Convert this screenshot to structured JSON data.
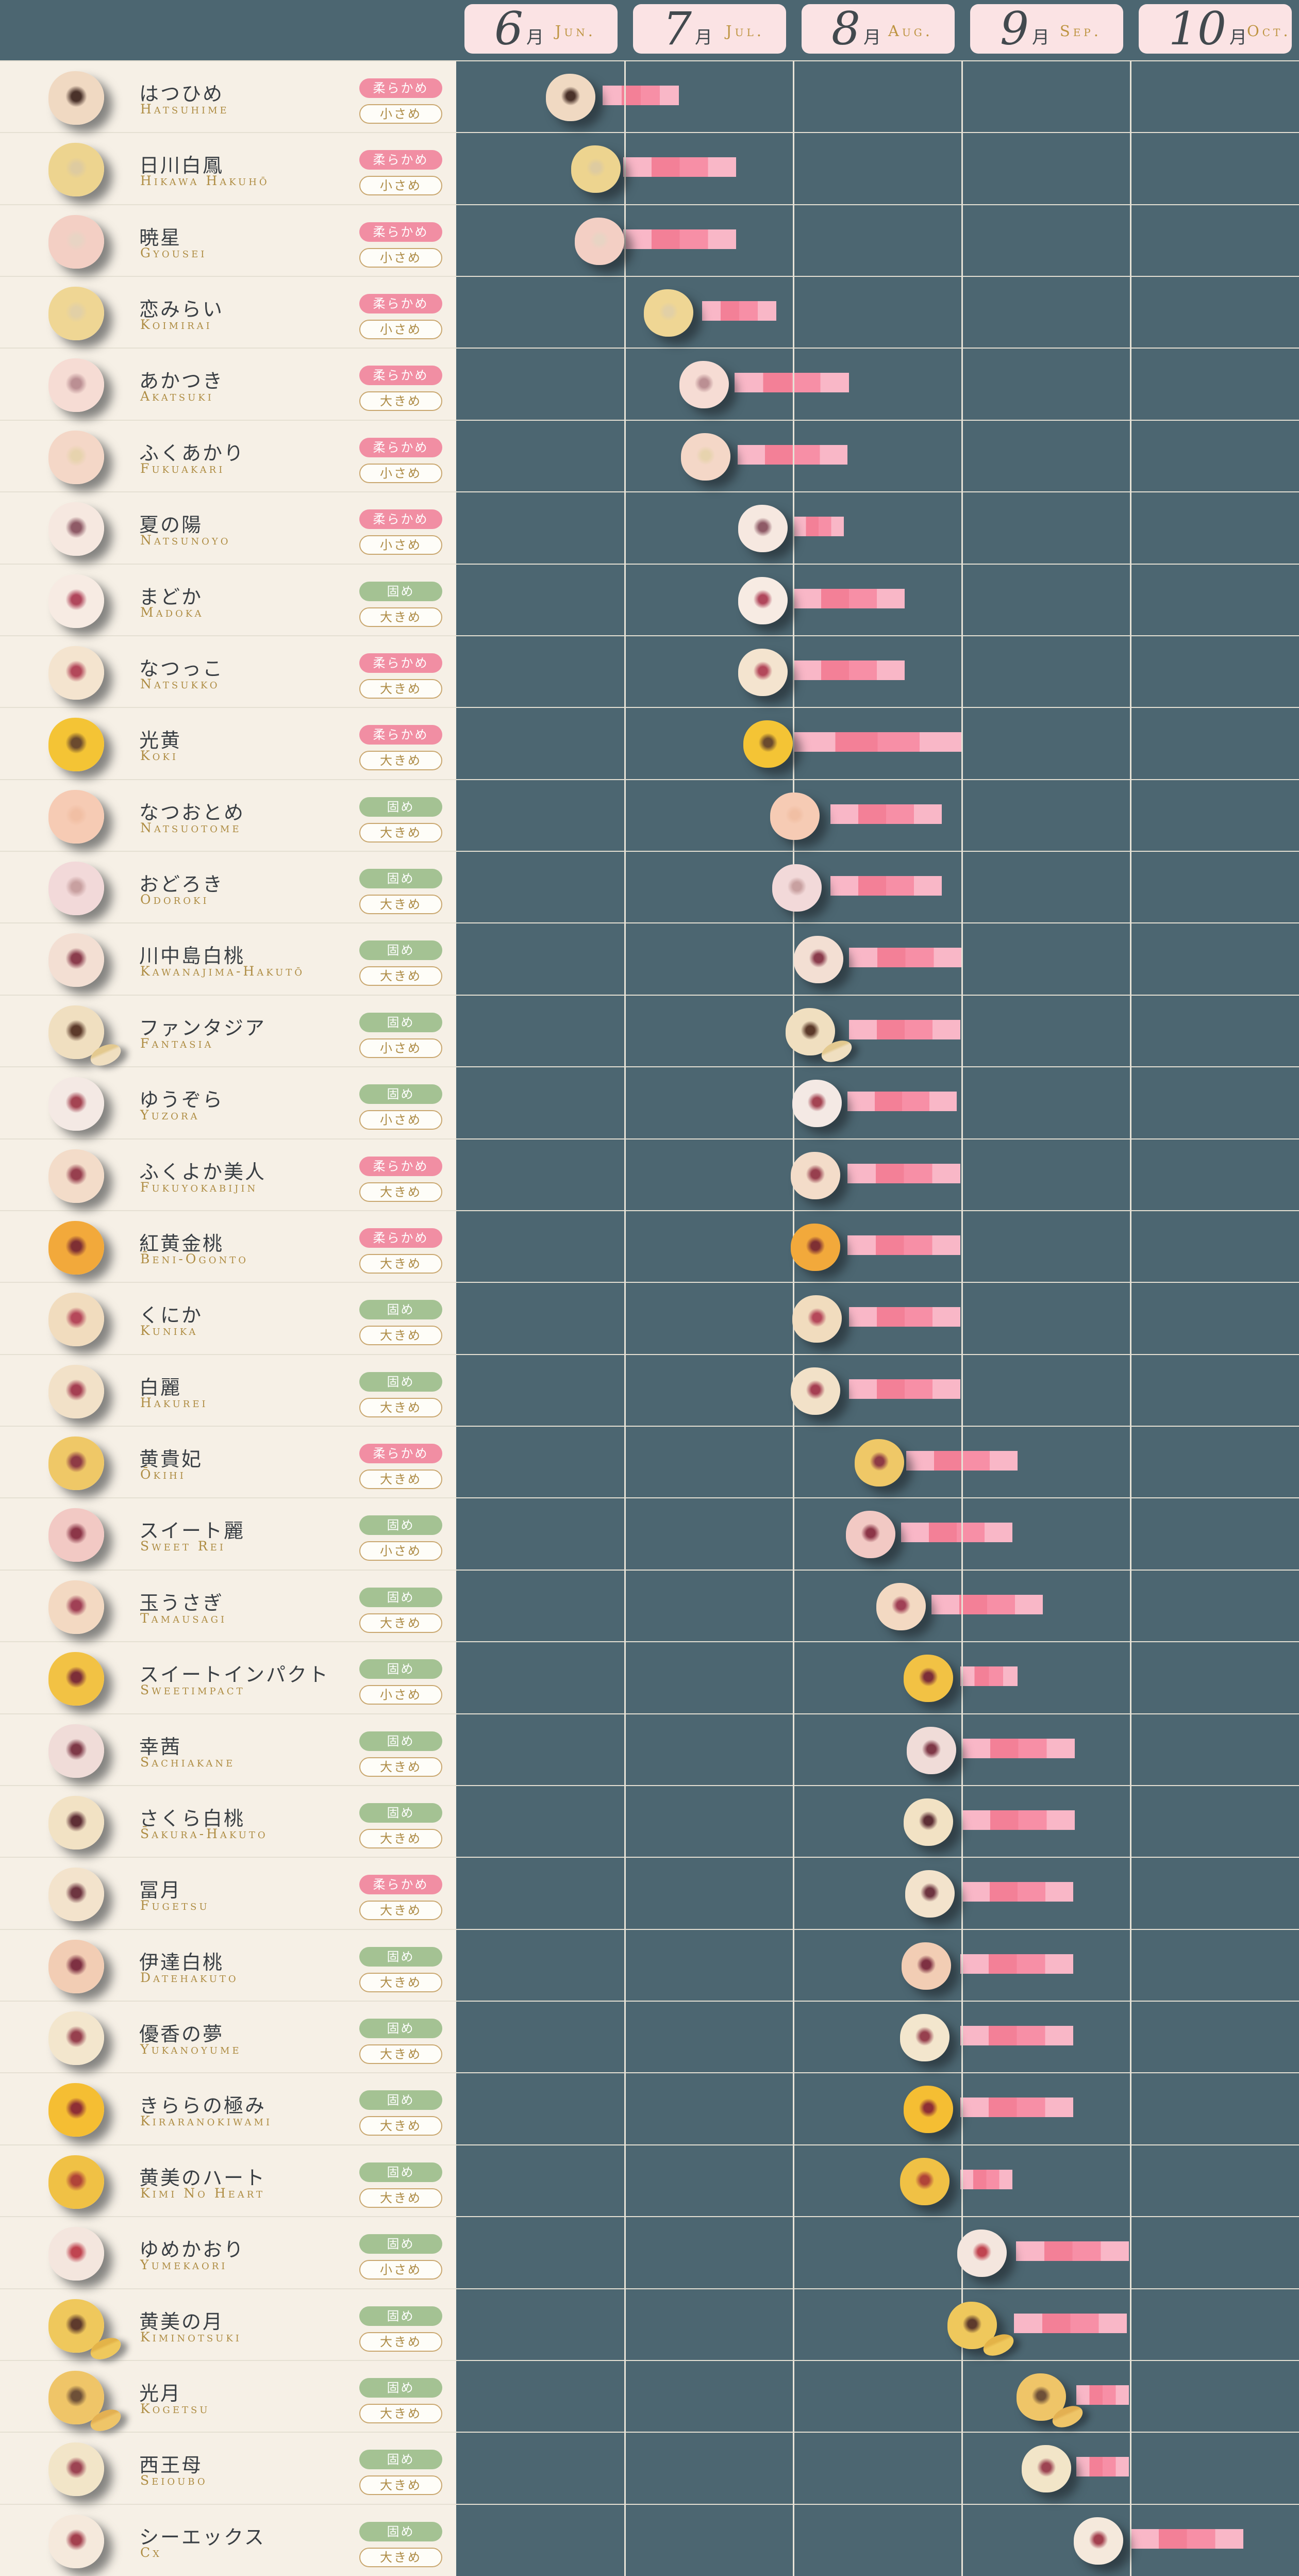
{
  "colors": {
    "background_teal": "#4C6671",
    "panel_cream": "#F6F0E6",
    "grid_line": "#E5E0D3",
    "month_box_pink": "#FBE3E4",
    "month_number": "#42494E",
    "month_en_gold": "#BE9441",
    "name_text": "#3A3F44",
    "romaji_gold": "#AE8C42",
    "badge_soft_pink": "#F18EA3",
    "badge_firm_green": "#A4C293",
    "badge_outline_bg": "#FEFDF8",
    "badge_outline_border": "#C9A76F",
    "badge_outline_text": "#AD8B45",
    "bar_light": "#F9B7C7",
    "bar_dark": "#F38097",
    "bar_mid": "#F78FA6"
  },
  "chart_data": {
    "type": "timeline",
    "title": "",
    "x_axis": {
      "unit": "month",
      "range": [
        6,
        11
      ],
      "tick_labels": [
        "6月 Jun.",
        "7月 Jul.",
        "8月 Aug.",
        "9月 Sep.",
        "10月 Oct."
      ]
    },
    "legend": {
      "texture_soft": "柔らかめ",
      "texture_firm": "固め",
      "size_small": "小さめ",
      "size_large": "大きめ"
    },
    "months": [
      {
        "num": "6",
        "kanji": "月",
        "en": "Jun."
      },
      {
        "num": "7",
        "kanji": "月",
        "en": "Jul."
      },
      {
        "num": "8",
        "kanji": "月",
        "en": "Aug."
      },
      {
        "num": "9",
        "kanji": "月",
        "en": "Sep."
      },
      {
        "num": "10",
        "kanji": "月",
        "en": "Oct."
      }
    ],
    "varieties": [
      {
        "name_ja": "はつひめ",
        "name_en": "Hatsuhime",
        "texture": "柔らかめ",
        "firm": false,
        "size": "小さめ",
        "start": 6.87,
        "end": 7.32,
        "peach_pos": 6.68,
        "flesh": "#F0D9C2",
        "skin": "#DF8A80",
        "pit": "#4A322A",
        "wedge": false
      },
      {
        "name_ja": "日川白鳳",
        "name_en": "Hikawa Hakuhō",
        "texture": "柔らかめ",
        "firm": false,
        "size": "小さめ",
        "start": 6.99,
        "end": 7.66,
        "peach_pos": 6.83,
        "flesh": "#EDD48F",
        "skin": "#D8BA62",
        "pit": "#DECBA0",
        "wedge": false
      },
      {
        "name_ja": "暁星",
        "name_en": "Gyousei",
        "texture": "柔らかめ",
        "firm": false,
        "size": "小さめ",
        "start": 6.99,
        "end": 7.66,
        "peach_pos": 6.85,
        "flesh": "#F3CFC4",
        "skin": "#E08A8F",
        "pit": "#E8D4C4",
        "wedge": false
      },
      {
        "name_ja": "恋みらい",
        "name_en": "Koimirai",
        "texture": "柔らかめ",
        "firm": false,
        "size": "小さめ",
        "start": 7.46,
        "end": 7.9,
        "peach_pos": 7.26,
        "flesh": "#EFD694",
        "skin": "#DBBE66",
        "pit": "#E2D0A6",
        "wedge": false
      },
      {
        "name_ja": "あかつき",
        "name_en": "Akatsuki",
        "texture": "柔らかめ",
        "firm": false,
        "size": "大きめ",
        "start": 7.65,
        "end": 8.33,
        "peach_pos": 7.47,
        "flesh": "#F6DCD4",
        "skin": "#EFB4B4",
        "pit": "#BB8F93",
        "wedge": false
      },
      {
        "name_ja": "ふくあかり",
        "name_en": "Fukuakari",
        "texture": "柔らかめ",
        "firm": false,
        "size": "小さめ",
        "start": 7.67,
        "end": 8.32,
        "peach_pos": 7.48,
        "flesh": "#F4D7C7",
        "skin": "#E79A9A",
        "pit": "#E7D3AE",
        "wedge": false
      },
      {
        "name_ja": "夏の陽",
        "name_en": "Natsunoyo",
        "texture": "柔らかめ",
        "firm": false,
        "size": "小さめ",
        "start": 8.0,
        "end": 8.3,
        "peach_pos": 7.82,
        "flesh": "#F6E8E0",
        "skin": "#EFC9C6",
        "pit": "#8E5A66",
        "wedge": false
      },
      {
        "name_ja": "まどか",
        "name_en": "Madoka",
        "texture": "固め",
        "firm": true,
        "size": "大きめ",
        "start": 8.0,
        "end": 8.66,
        "peach_pos": 7.82,
        "flesh": "#F7EBE3",
        "skin": "#F0CFC9",
        "pit": "#B0475C",
        "wedge": false
      },
      {
        "name_ja": "なつっこ",
        "name_en": "Natsukko",
        "texture": "柔らかめ",
        "firm": false,
        "size": "大きめ",
        "start": 8.0,
        "end": 8.66,
        "peach_pos": 7.82,
        "flesh": "#F4E4CF",
        "skin": "#EBB3A8",
        "pit": "#B3485A",
        "wedge": false
      },
      {
        "name_ja": "光黄",
        "name_en": "Koki",
        "texture": "柔らかめ",
        "firm": false,
        "size": "大きめ",
        "start": 8.0,
        "end": 9.0,
        "peach_pos": 7.85,
        "flesh": "#F4C435",
        "skin": "#E9A93C",
        "pit": "#6B4A2E",
        "wedge": false
      },
      {
        "name_ja": "なつおとめ",
        "name_en": "Natsuotome",
        "texture": "固め",
        "firm": true,
        "size": "大きめ",
        "start": 8.22,
        "end": 8.88,
        "peach_pos": 8.01,
        "flesh": "#F6CBB4",
        "skin": "#F0A794",
        "pit": "#F1BFA4",
        "wedge": false
      },
      {
        "name_ja": "おどろき",
        "name_en": "Odoroki",
        "texture": "固め",
        "firm": true,
        "size": "大きめ",
        "start": 8.22,
        "end": 8.88,
        "peach_pos": 8.02,
        "flesh": "#F2D9D9",
        "skin": "#E9AFAF",
        "pit": "#C8A0A0",
        "wedge": false
      },
      {
        "name_ja": "川中島白桃",
        "name_en": "Kawanajima-Hakutō",
        "texture": "固め",
        "firm": true,
        "size": "大きめ",
        "start": 8.33,
        "end": 9.0,
        "peach_pos": 8.15,
        "flesh": "#F3DFD3",
        "skin": "#EBB5AC",
        "pit": "#8A3C4C",
        "wedge": false
      },
      {
        "name_ja": "ファンタジア",
        "name_en": "Fantasia",
        "texture": "固め",
        "firm": true,
        "size": "小さめ",
        "start": 8.33,
        "end": 8.99,
        "peach_pos": 8.1,
        "flesh": "#F0DFC0",
        "skin": "#E3C98F",
        "pit": "#5C3A2A",
        "wedge": true
      },
      {
        "name_ja": "ゆうぞら",
        "name_en": "Yuzora",
        "texture": "固め",
        "firm": true,
        "size": "小さめ",
        "start": 8.32,
        "end": 8.97,
        "peach_pos": 8.14,
        "flesh": "#F4E9E4",
        "skin": "#ECCBC4",
        "pit": "#A44452",
        "wedge": false
      },
      {
        "name_ja": "ふくよか美人",
        "name_en": "Fukuyokabijin",
        "texture": "柔らかめ",
        "firm": false,
        "size": "大きめ",
        "start": 8.32,
        "end": 8.99,
        "peach_pos": 8.13,
        "flesh": "#F3DCC9",
        "skin": "#ECB4A4",
        "pit": "#973F4E",
        "wedge": false
      },
      {
        "name_ja": "紅黄金桃",
        "name_en": "B̄eni-Ogonto",
        "texture": "柔らかめ",
        "firm": false,
        "size": "大きめ",
        "start": 8.32,
        "end": 8.99,
        "peach_pos": 8.13,
        "flesh": "#F2A93B",
        "skin": "#E08A33",
        "pit": "#7E2F33",
        "wedge": false
      },
      {
        "name_ja": "くにか",
        "name_en": "Kunika",
        "texture": "固め",
        "firm": true,
        "size": "大きめ",
        "start": 8.33,
        "end": 8.99,
        "peach_pos": 8.14,
        "flesh": "#F1DCBE",
        "skin": "#E7BC9E",
        "pit": "#B5485A",
        "wedge": false
      },
      {
        "name_ja": "白麗",
        "name_en": "Hakurei",
        "texture": "固め",
        "firm": true,
        "size": "大きめ",
        "start": 8.33,
        "end": 8.99,
        "peach_pos": 8.13,
        "flesh": "#F2E1C8",
        "skin": "#EAC3AC",
        "pit": "#A53F52",
        "wedge": false
      },
      {
        "name_ja": "黄貴妃",
        "name_en": "Ōkihi",
        "texture": "柔らかめ",
        "firm": false,
        "size": "大きめ",
        "start": 8.67,
        "end": 9.33,
        "peach_pos": 8.51,
        "flesh": "#EFC867",
        "skin": "#E4B44E",
        "pit": "#8E3B45",
        "wedge": false
      },
      {
        "name_ja": "スイート麗",
        "name_en": "Sweet Rei",
        "texture": "固め",
        "firm": true,
        "size": "小さめ",
        "start": 8.64,
        "end": 9.3,
        "peach_pos": 8.46,
        "flesh": "#F2C9C4",
        "skin": "#E79B9B",
        "pit": "#8C3648",
        "wedge": false
      },
      {
        "name_ja": "玉うさぎ",
        "name_en": "Tamausagi",
        "texture": "固め",
        "firm": true,
        "size": "大きめ",
        "start": 8.82,
        "end": 9.48,
        "peach_pos": 8.64,
        "flesh": "#F3D9C2",
        "skin": "#EBAC96",
        "pit": "#A04055",
        "wedge": false
      },
      {
        "name_ja": "スイートインパクト",
        "name_en": "Sweetimpact",
        "texture": "固め",
        "firm": true,
        "size": "小さめ",
        "start": 8.99,
        "end": 9.33,
        "peach_pos": 8.8,
        "flesh": "#F2C244",
        "skin": "#E6A93A",
        "pit": "#7C2E38",
        "wedge": false
      },
      {
        "name_ja": "幸茜",
        "name_en": "Sachiakane",
        "texture": "固め",
        "firm": true,
        "size": "大きめ",
        "start": 9.0,
        "end": 9.67,
        "peach_pos": 8.82,
        "flesh": "#F0DCD8",
        "skin": "#E7B9B4",
        "pit": "#7E3847",
        "wedge": false
      },
      {
        "name_ja": "さくら白桃",
        "name_en": "S̄akura-Hakuto",
        "texture": "固め",
        "firm": true,
        "size": "大きめ",
        "start": 9.0,
        "end": 9.67,
        "peach_pos": 8.8,
        "flesh": "#F2E2C4",
        "skin": "#EAC9A2",
        "pit": "#5E2F35",
        "wedge": false
      },
      {
        "name_ja": "冨月",
        "name_en": "Fugetsu",
        "texture": "柔らかめ",
        "firm": false,
        "size": "大きめ",
        "start": 9.0,
        "end": 9.66,
        "peach_pos": 8.81,
        "flesh": "#F3E3CC",
        "skin": "#EBC0A8",
        "pit": "#6E3540",
        "wedge": false
      },
      {
        "name_ja": "伊達白桃",
        "name_en": "Datehakuto",
        "texture": "固め",
        "firm": true,
        "size": "大きめ",
        "start": 8.99,
        "end": 9.66,
        "peach_pos": 8.79,
        "flesh": "#F2CDB4",
        "skin": "#EAAB96",
        "pit": "#7E3042",
        "wedge": false
      },
      {
        "name_ja": "優香の夢",
        "name_en": "Yukanoyume",
        "texture": "固め",
        "firm": true,
        "size": "大きめ",
        "start": 8.99,
        "end": 9.66,
        "peach_pos": 8.78,
        "flesh": "#F3E6CD",
        "skin": "#E9C8AE",
        "pit": "#96404E",
        "wedge": false
      },
      {
        "name_ja": "きららの極み",
        "name_en": "Kiraranokiwami",
        "texture": "固め",
        "firm": true,
        "size": "大きめ",
        "start": 8.99,
        "end": 9.66,
        "peach_pos": 8.8,
        "flesh": "#F5BE33",
        "skin": "#EAA52F",
        "pit": "#8E2F35",
        "wedge": false
      },
      {
        "name_ja": "黄美のハート",
        "name_en": "Kimi No Heart",
        "texture": "固め",
        "firm": true,
        "size": "大きめ",
        "start": 8.99,
        "end": 9.3,
        "peach_pos": 8.78,
        "flesh": "#F0C145",
        "skin": "#E5A93C",
        "pit": "#B04438",
        "wedge": false
      },
      {
        "name_ja": "ゆめかおり",
        "name_en": "Yumekaori",
        "texture": "固め",
        "firm": true,
        "size": "小さめ",
        "start": 9.32,
        "end": 9.99,
        "peach_pos": 9.12,
        "flesh": "#F4E6DE",
        "skin": "#ECC0BA",
        "pit": "#C04450",
        "wedge": false
      },
      {
        "name_ja": "黄美の月",
        "name_en": "Kiminotsuki",
        "texture": "固め",
        "firm": true,
        "size": "大きめ",
        "start": 9.31,
        "end": 9.98,
        "peach_pos": 9.06,
        "flesh": "#EFC85C",
        "skin": "#E3B348",
        "pit": "#5E3A2C",
        "wedge": true
      },
      {
        "name_ja": "光月",
        "name_en": "Kogetsu",
        "texture": "固め",
        "firm": true,
        "size": "大きめ",
        "start": 9.68,
        "end": 9.99,
        "peach_pos": 9.47,
        "flesh": "#EFC568",
        "skin": "#E3B052",
        "pit": "#6E5038",
        "wedge": true
      },
      {
        "name_ja": "西王母",
        "name_en": "Seioubo",
        "texture": "固め",
        "firm": true,
        "size": "大きめ",
        "start": 9.68,
        "end": 9.99,
        "peach_pos": 9.5,
        "flesh": "#F2E5C8",
        "skin": "#E9CBA8",
        "pit": "#9C4452",
        "wedge": false
      },
      {
        "name_ja": "シーエックス",
        "name_en": "Cx",
        "texture": "固め",
        "firm": true,
        "size": "大きめ",
        "start": 10.0,
        "end": 10.67,
        "peach_pos": 9.81,
        "flesh": "#F5E9DC",
        "skin": "#ECC6BC",
        "pit": "#A3404E",
        "wedge": false
      }
    ]
  }
}
